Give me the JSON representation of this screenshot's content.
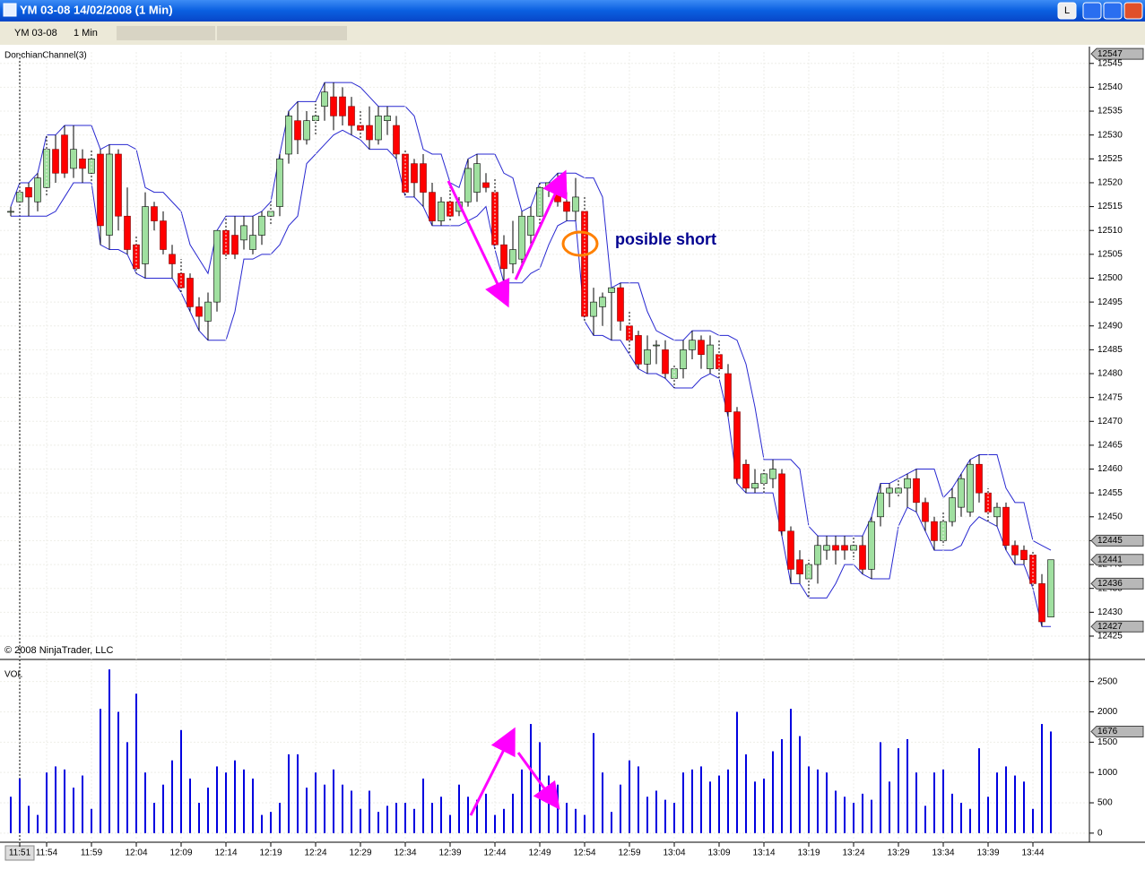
{
  "window": {
    "title": "YM 03-08  14/02/2008  (1 Min)",
    "button": "L"
  },
  "toolbar": {
    "instrument": "YM 03-08",
    "interval": "1 Min"
  },
  "chart_data": [
    {
      "type": "candlestick",
      "indicator": "DonchianChannel(3)",
      "copyright": "© 2008 NinjaTrader, LLC",
      "annotation": "posible short",
      "up_color": "#a0e0a0",
      "down_color": "#ff0000",
      "channel_color": "#2828d0",
      "grid": true,
      "ylim": [
        12420.3,
        12547.4
      ],
      "yticks": [
        12425,
        12430,
        12435,
        12440,
        12445,
        12450,
        12455,
        12460,
        12465,
        12470,
        12475,
        12480,
        12485,
        12490,
        12495,
        12500,
        12505,
        12510,
        12515,
        12520,
        12525,
        12530,
        12535,
        12540,
        12545
      ],
      "price_markers": [
        12547,
        12445,
        12441,
        12436,
        12427
      ],
      "open": [
        12514,
        12516,
        12519,
        12516,
        12519,
        12527,
        12530,
        12523,
        12525,
        12522,
        12526,
        12509,
        12526,
        12513,
        12507,
        12503,
        12515,
        12512,
        12505,
        12501,
        12500,
        12494,
        12491,
        12495,
        12510,
        12509,
        12508,
        12506,
        12509,
        12513,
        12515,
        12526,
        12533,
        12529,
        12533,
        12536,
        12538,
        12538,
        12536,
        12532,
        12532,
        12529,
        12533,
        12532,
        12526,
        12524,
        12524,
        12518,
        12512,
        12516,
        12514,
        12516,
        12518,
        12520,
        12518,
        12507,
        12503,
        12504,
        12509,
        12513,
        12519,
        12519,
        12516,
        12514,
        12514,
        12492,
        12494,
        12497,
        12498,
        12490,
        12488,
        12482,
        12486,
        12485,
        12479,
        12481,
        12485,
        12487,
        12481,
        12484,
        12480,
        12472,
        12461,
        12456,
        12457,
        12458,
        12459,
        12447,
        12441,
        12437,
        12440,
        12443,
        12444,
        12444,
        12443,
        12444,
        12439,
        12450,
        12455,
        12455,
        12456,
        12458,
        12453,
        12449,
        12445,
        12449,
        12452,
        12451,
        12461,
        12455,
        12450,
        12452,
        12444,
        12443,
        12442,
        12436,
        12429
      ],
      "high": [
        12515,
        12520,
        12520,
        12522,
        12530,
        12530,
        12532,
        12532,
        12527,
        12527,
        12527,
        12528,
        12527,
        12519,
        12509,
        12518,
        12516,
        12514,
        12507,
        12504,
        12501,
        12496,
        12497,
        12510,
        12513,
        12513,
        12513,
        12513,
        12514,
        12516,
        12526,
        12535,
        12537,
        12535,
        12537,
        12541,
        12541,
        12540,
        12538,
        12535,
        12536,
        12536,
        12536,
        12534,
        12527,
        12525,
        12526,
        12520,
        12517,
        12519,
        12517,
        12525,
        12526,
        12522,
        12521,
        12509,
        12512,
        12514,
        12515,
        12520,
        12520,
        12522,
        12518,
        12521,
        12517,
        12498,
        12497,
        12498,
        12499,
        12493,
        12489,
        12488,
        12487,
        12487,
        12482,
        12487,
        12489,
        12488,
        12488,
        12487,
        12482,
        12473,
        12462,
        12460,
        12460,
        12462,
        12460,
        12448,
        12443,
        12441,
        12446,
        12446,
        12446,
        12446,
        12446,
        12446,
        12450,
        12457,
        12457,
        12458,
        12459,
        12460,
        12454,
        12450,
        12451,
        12456,
        12459,
        12462,
        12463,
        12456,
        12453,
        12453,
        12445,
        12444,
        12443,
        12438,
        12441
      ],
      "low": [
        12513,
        12514,
        12513,
        12514,
        12517,
        12520,
        12521,
        12521,
        12520,
        12520,
        12507,
        12506,
        12510,
        12505,
        12501,
        12500,
        12510,
        12505,
        12500,
        12497,
        12493,
        12489,
        12487,
        12493,
        12504,
        12504,
        12506,
        12505,
        12507,
        12511,
        12513,
        12524,
        12526,
        12528,
        12530,
        12533,
        12531,
        12532,
        12530,
        12529,
        12527,
        12528,
        12530,
        12525,
        12517,
        12517,
        12515,
        12511,
        12511,
        12512,
        12513,
        12515,
        12516,
        12518,
        12506,
        12499,
        12501,
        12502,
        12507,
        12511,
        12517,
        12515,
        12512,
        12512,
        12491,
        12488,
        12490,
        12487,
        12489,
        12484,
        12481,
        12480,
        12482,
        12479,
        12477,
        12479,
        12483,
        12481,
        12480,
        12479,
        12471,
        12457,
        12455,
        12455,
        12455,
        12456,
        12446,
        12436,
        12436,
        12433,
        12436,
        12441,
        12440,
        12441,
        12441,
        12438,
        12437,
        12448,
        12452,
        12454,
        12452,
        12451,
        12447,
        12443,
        12444,
        12448,
        12450,
        12450,
        12453,
        12449,
        12448,
        12443,
        12440,
        12440,
        12435,
        12427,
        12429
      ],
      "close": [
        12514,
        12518,
        12517,
        12521,
        12527,
        12522,
        12522,
        12527,
        12523,
        12525,
        12511,
        12526,
        12513,
        12506,
        12502,
        12515,
        12512,
        12506,
        12503,
        12498,
        12494,
        12492,
        12495,
        12510,
        12505,
        12505,
        12511,
        12509,
        12513,
        12514,
        12525,
        12534,
        12529,
        12533,
        12534,
        12539,
        12534,
        12534,
        12532,
        12531,
        12529,
        12534,
        12534,
        12526,
        12518,
        12520,
        12518,
        12512,
        12516,
        12513,
        12516,
        12523,
        12524,
        12519,
        12507,
        12502,
        12506,
        12513,
        12513,
        12519,
        12520,
        12516,
        12514,
        12517,
        12492,
        12495,
        12496,
        12498,
        12491,
        12487,
        12482,
        12485,
        12486,
        12480,
        12481,
        12485,
        12487,
        12484,
        12486,
        12481,
        12472,
        12458,
        12456,
        12457,
        12459,
        12460,
        12447,
        12439,
        12438,
        12440,
        12444,
        12444,
        12443,
        12443,
        12444,
        12439,
        12449,
        12455,
        12456,
        12456,
        12458,
        12453,
        12449,
        12445,
        12449,
        12454,
        12458,
        12461,
        12455,
        12451,
        12452,
        12444,
        12442,
        12441,
        12436,
        12428,
        12441
      ],
      "channel_upper": [
        12515,
        12520,
        12520,
        12522,
        12530,
        12530,
        12532,
        12532,
        12532,
        12532,
        12527,
        12528,
        12528,
        12528,
        12527,
        12519,
        12518,
        12518,
        12516,
        12514,
        12507,
        12504,
        12501,
        12510,
        12513,
        12513,
        12513,
        12513,
        12514,
        12516,
        12526,
        12535,
        12537,
        12537,
        12537,
        12541,
        12541,
        12541,
        12541,
        12540,
        12538,
        12536,
        12536,
        12536,
        12536,
        12534,
        12527,
        12526,
        12526,
        12520,
        12519,
        12525,
        12526,
        12526,
        12526,
        12522,
        12521,
        12514,
        12515,
        12520,
        12520,
        12522,
        12522,
        12522,
        12521,
        12521,
        12517,
        12498,
        12499,
        12499,
        12499,
        12493,
        12489,
        12488,
        12487,
        12487,
        12489,
        12489,
        12489,
        12488,
        12488,
        12487,
        12482,
        12473,
        12462,
        12462,
        12462,
        12462,
        12460,
        12448,
        12446,
        12446,
        12446,
        12446,
        12446,
        12446,
        12450,
        12457,
        12457,
        12458,
        12459,
        12460,
        12460,
        12460,
        12454,
        12456,
        12459,
        12462,
        12463,
        12463,
        12463,
        12456,
        12453,
        12453,
        12445,
        12444,
        12443
      ],
      "channel_lower": [
        12513,
        12513,
        12513,
        12513,
        12513,
        12514,
        12517,
        12520,
        12520,
        12520,
        12507,
        12506,
        12506,
        12505,
        12501,
        12500,
        12500,
        12500,
        12500,
        12497,
        12493,
        12489,
        12487,
        12487,
        12487,
        12493,
        12504,
        12504,
        12505,
        12505,
        12507,
        12511,
        12513,
        12524,
        12526,
        12528,
        12530,
        12531,
        12530,
        12529,
        12527,
        12527,
        12527,
        12525,
        12517,
        12517,
        12515,
        12511,
        12511,
        12511,
        12511,
        12512,
        12513,
        12515,
        12506,
        12499,
        12499,
        12499,
        12501,
        12502,
        12507,
        12511,
        12512,
        12512,
        12491,
        12488,
        12488,
        12487,
        12487,
        12484,
        12481,
        12480,
        12480,
        12479,
        12477,
        12477,
        12477,
        12479,
        12480,
        12479,
        12471,
        12457,
        12455,
        12455,
        12455,
        12455,
        12446,
        12436,
        12436,
        12433,
        12433,
        12433,
        12436,
        12440,
        12440,
        12438,
        12437,
        12437,
        12437,
        12448,
        12452,
        12451,
        12447,
        12443,
        12443,
        12443,
        12444,
        12448,
        12450,
        12449,
        12448,
        12443,
        12440,
        12440,
        12435,
        12427,
        12427
      ]
    },
    {
      "type": "bar",
      "title": "VOL",
      "color": "#0000e0",
      "grid": true,
      "ylim": [
        -150,
        2850
      ],
      "yticks": [
        0,
        500,
        1000,
        1500,
        2000,
        2500
      ],
      "price_markers": [
        1676
      ],
      "categories": [
        null,
        "11:51",
        null,
        null,
        "11:54",
        null,
        null,
        null,
        null,
        "11:59",
        null,
        null,
        null,
        null,
        "12:04",
        null,
        null,
        null,
        null,
        "12:09",
        null,
        null,
        null,
        null,
        "12:14",
        null,
        null,
        null,
        null,
        "12:19",
        null,
        null,
        null,
        null,
        "12:24",
        null,
        null,
        null,
        null,
        "12:29",
        null,
        null,
        null,
        null,
        "12:34",
        null,
        null,
        null,
        null,
        "12:39",
        null,
        null,
        null,
        null,
        "12:44",
        null,
        null,
        null,
        null,
        "12:49",
        null,
        null,
        null,
        null,
        "12:54",
        null,
        null,
        null,
        null,
        "12:59",
        null,
        null,
        null,
        null,
        "13:04",
        null,
        null,
        null,
        null,
        "13:09",
        null,
        null,
        null,
        null,
        "13:14",
        null,
        null,
        null,
        null,
        "13:19",
        null,
        null,
        null,
        null,
        "13:24",
        null,
        null,
        null,
        null,
        "13:29",
        null,
        null,
        null,
        null,
        "13:34",
        null,
        null,
        null,
        null,
        "13:39",
        null,
        null,
        null,
        null,
        "13:44",
        null,
        null
      ],
      "values": [
        600,
        900,
        450,
        300,
        1000,
        1100,
        1050,
        750,
        950,
        400,
        2050,
        2700,
        2000,
        1500,
        2300,
        1000,
        500,
        800,
        1200,
        1700,
        900,
        500,
        750,
        1100,
        1000,
        1200,
        1050,
        900,
        300,
        350,
        500,
        1300,
        1300,
        750,
        1000,
        800,
        1050,
        800,
        700,
        400,
        700,
        350,
        450,
        500,
        500,
        400,
        900,
        500,
        600,
        300,
        800,
        600,
        550,
        650,
        300,
        400,
        650,
        1050,
        1800,
        1500,
        950,
        800,
        500,
        400,
        300,
        1650,
        1000,
        350,
        800,
        1200,
        1100,
        600,
        700,
        550,
        500,
        1000,
        1050,
        1100,
        850,
        950,
        1050,
        2000,
        1300,
        850,
        900,
        1350,
        1550,
        2050,
        1600,
        1100,
        1050,
        1000,
        700,
        600,
        500,
        650,
        550,
        1500,
        850,
        1400,
        1550,
        1000,
        450,
        1000,
        1050,
        650,
        500,
        400,
        1400,
        600,
        1000,
        1100,
        950,
        850,
        400,
        1800,
        1676
      ]
    }
  ]
}
